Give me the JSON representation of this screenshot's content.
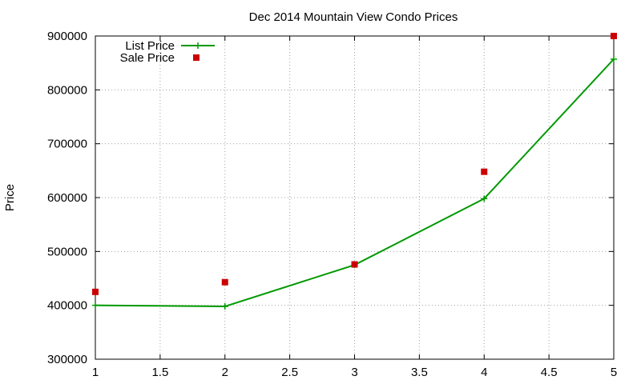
{
  "chart_data": {
    "type": "line",
    "title": "Dec 2014 Mountain View Condo Prices",
    "xlabel": "",
    "ylabel": "Price",
    "xlim": [
      1,
      5
    ],
    "ylim": [
      300000,
      900000
    ],
    "x_ticks": [
      1,
      1.5,
      2,
      2.5,
      3,
      3.5,
      4,
      4.5,
      5
    ],
    "x_tick_labels": [
      "1",
      "1.5",
      "2",
      "2.5",
      "3",
      "3.5",
      "4",
      "4.5",
      "5"
    ],
    "y_ticks": [
      300000,
      400000,
      500000,
      600000,
      700000,
      800000,
      900000
    ],
    "y_tick_labels": [
      "300000",
      "400000",
      "500000",
      "600000",
      "700000",
      "800000",
      "900000"
    ],
    "grid": true,
    "legend_position": "top-left",
    "series": [
      {
        "name": "List Price",
        "style": "linespoints",
        "marker": "plus",
        "color": "#009900",
        "x": [
          1,
          2,
          3,
          4,
          5
        ],
        "y": [
          400000,
          398000,
          475000,
          598000,
          857000
        ]
      },
      {
        "name": "Sale Price",
        "style": "points",
        "marker": "square",
        "color": "#cc0000",
        "x": [
          1,
          2,
          3,
          4,
          5
        ],
        "y": [
          425000,
          443000,
          476000,
          648000,
          900000
        ]
      }
    ]
  }
}
